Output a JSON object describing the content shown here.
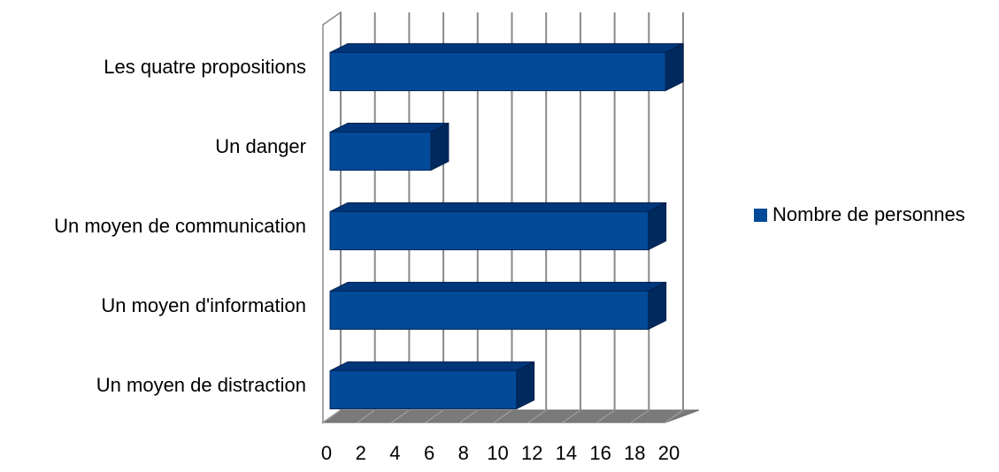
{
  "chart_data": {
    "type": "bar",
    "orientation": "horizontal",
    "style": "3d",
    "categories": [
      "Les quatre propositions",
      "Un danger",
      "Un moyen de communication",
      "Un moyen d'information",
      "Un moyen de distraction"
    ],
    "series": [
      {
        "name": "Nombre de personnes",
        "values": [
          20,
          6.3,
          19,
          19,
          11.3
        ]
      }
    ],
    "xlim": [
      0,
      20
    ],
    "xticks": [
      "0",
      "2",
      "4",
      "6",
      "8",
      "10",
      "12",
      "14",
      "16",
      "18",
      "20"
    ],
    "grid": "vertical",
    "legend_position": "right",
    "colors": {
      "bar_front": "#034a98",
      "bar_top": "#00367a",
      "bar_side": "#002a5e",
      "grid": "#8a8a8a",
      "floor": "#7a7a7a",
      "floor_grid": "#a8a8a8"
    }
  }
}
